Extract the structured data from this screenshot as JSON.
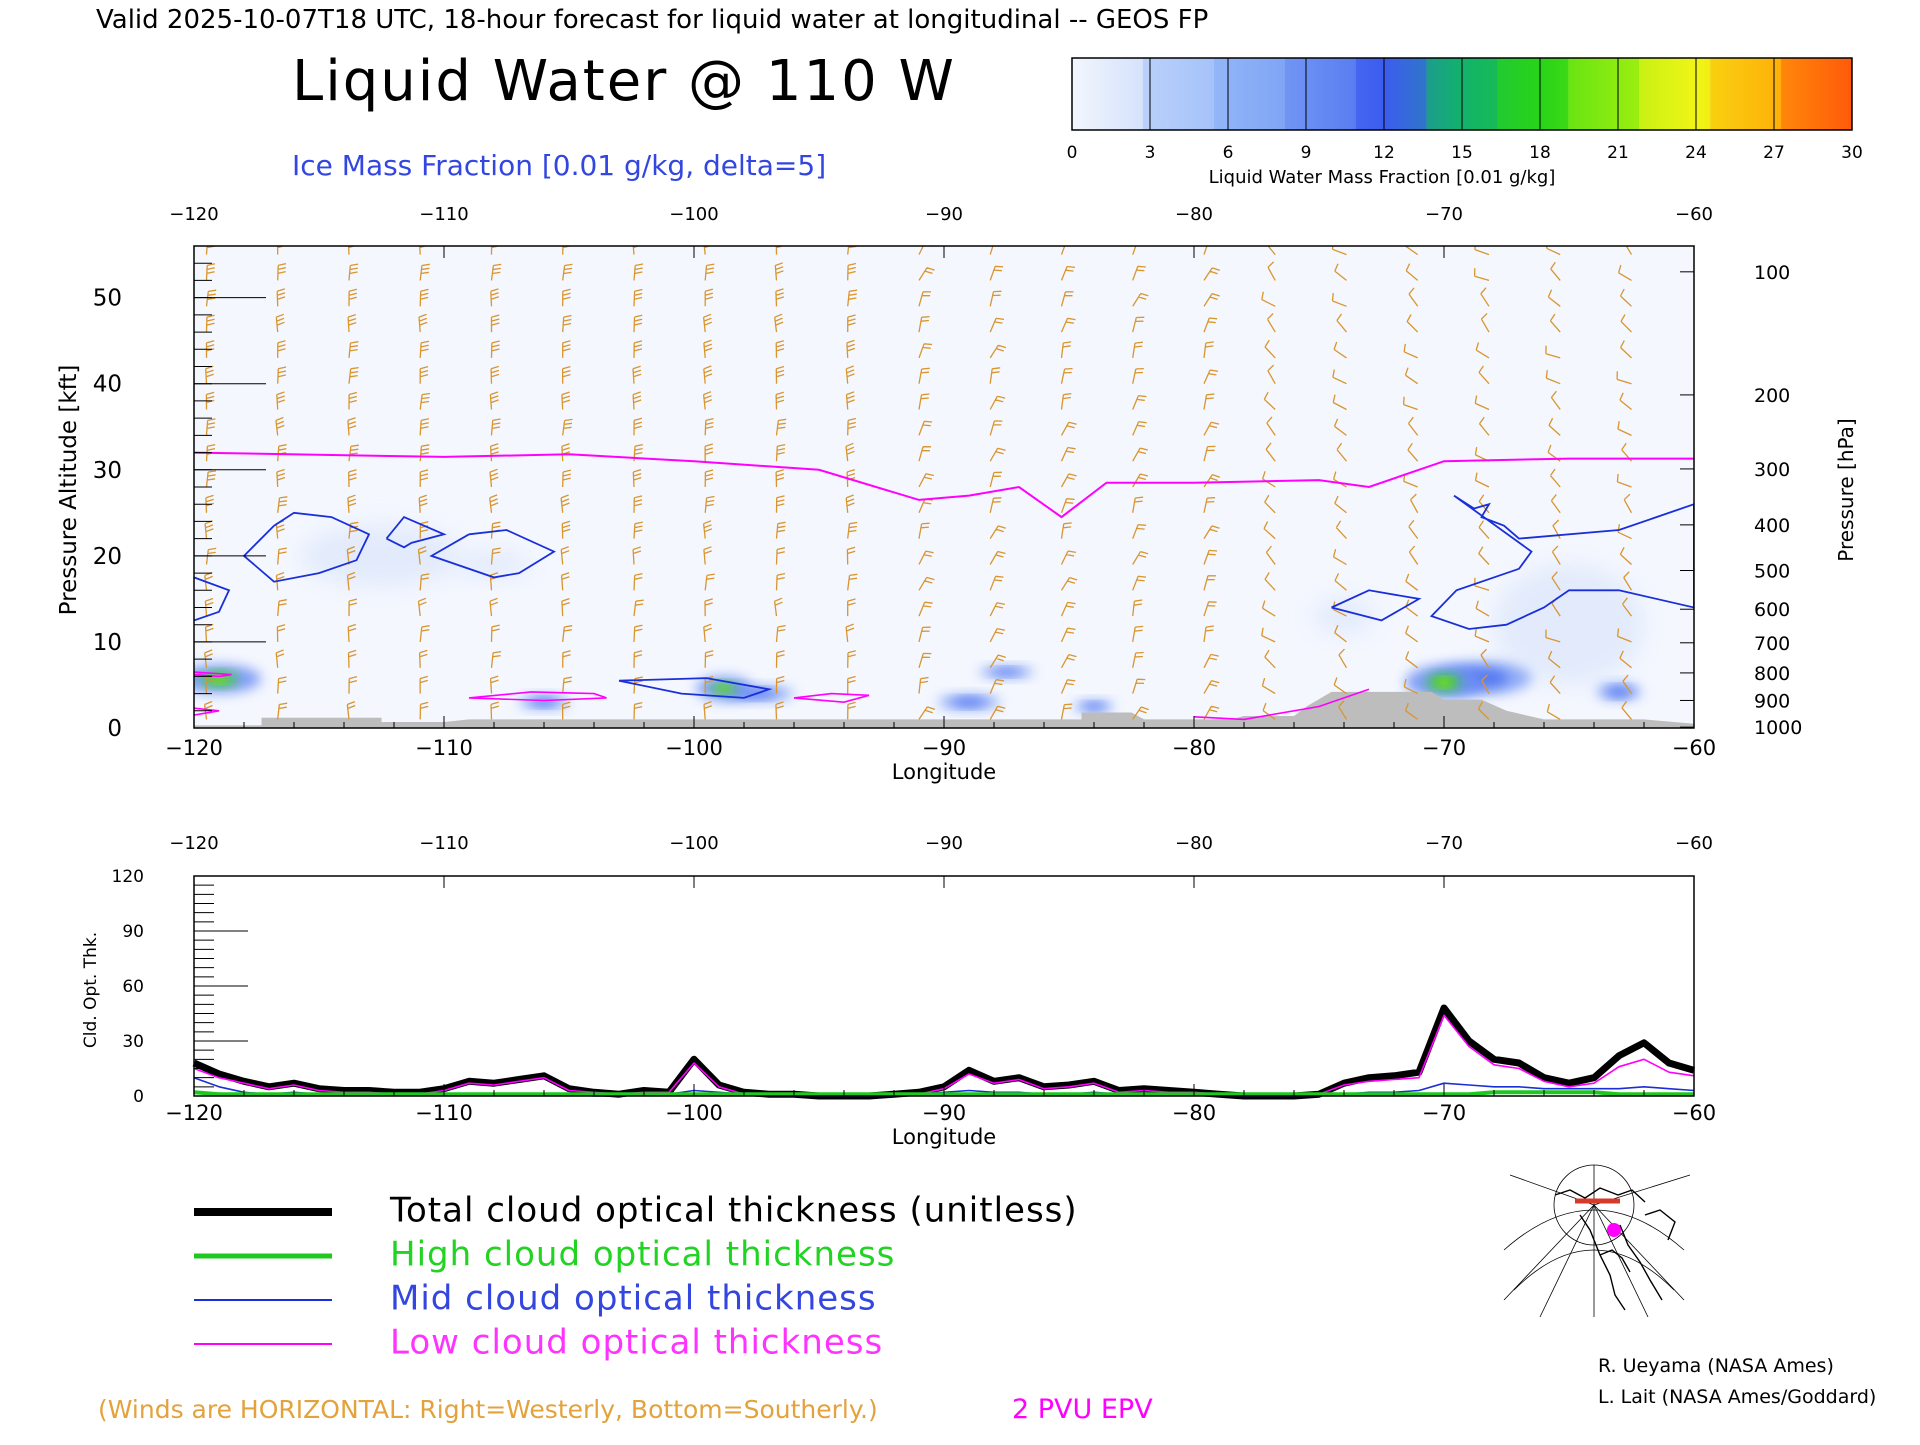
{
  "header": {
    "valid_line": "Valid 2025-10-07T18 UTC, 18-hour forecast for liquid water at longitudinal -- GEOS FP",
    "title": "Liquid Water @ 110 W",
    "subtitle": "Ice Mass Fraction [0.01 g/kg, delta=5]"
  },
  "colorbar": {
    "label": "Liquid Water Mass Fraction [0.01 g/kg]",
    "ticks": [
      "0",
      "3",
      "6",
      "9",
      "12",
      "15",
      "18",
      "21",
      "24",
      "27",
      "30"
    ],
    "colors": [
      "#f2f6fd",
      "#b8cffa",
      "#8fb3f7",
      "#6a8ff3",
      "#3c5cf0",
      "#12b26b",
      "#28d418",
      "#8cec10",
      "#f0f516",
      "#ffb30a",
      "#ff5a0a"
    ]
  },
  "colors": {
    "liquid_low": "#e8f0fd",
    "liquid_mid": "#4a6df0",
    "liquid_high": "#28d418",
    "ice_contour": "#1a2fd8",
    "epv": "#ff00ff",
    "wind_barb": "#d9952e",
    "terrain": "#bdbdbd",
    "total": "#000000",
    "high": "#1fc81f",
    "mid": "#1a2fd8",
    "low": "#ff00ff"
  },
  "chart_data": [
    {
      "type": "heatmap",
      "title": "Liquid Water @ 110 W",
      "xlabel": "Longitude",
      "ylabel": "Pressure Altitude [kft]",
      "y2label": "Pressure [hPa]",
      "xlim": [
        -120,
        -60
      ],
      "ylim": [
        0,
        56
      ],
      "x_ticks": [
        -120,
        -110,
        -100,
        -90,
        -80,
        -70,
        -60
      ],
      "x_tick_labels": [
        "−120",
        "−110",
        "−100",
        "−90",
        "−80",
        "−70",
        "−60"
      ],
      "y_ticks": [
        0,
        10,
        20,
        30,
        40,
        50
      ],
      "pressure_ticks": [
        {
          "label": "100",
          "kft": 53.0
        },
        {
          "label": "200",
          "kft": 38.7
        },
        {
          "label": "300",
          "kft": 30.1
        },
        {
          "label": "400",
          "kft": 23.6
        },
        {
          "label": "500",
          "kft": 18.3
        },
        {
          "label": "600",
          "kft": 13.8
        },
        {
          "label": "700",
          "kft": 9.9
        },
        {
          "label": "800",
          "kft": 6.4
        },
        {
          "label": "900",
          "kft": 3.2
        },
        {
          "label": "1000",
          "kft": 0.1
        }
      ],
      "liquid_blobs": [
        {
          "lon": -119.0,
          "kft": 5.7,
          "rx": 2.4,
          "ry": 1.2,
          "level": "high"
        },
        {
          "lon": -98.8,
          "kft": 4.6,
          "rx": 1.6,
          "ry": 1.0,
          "level": "high"
        },
        {
          "lon": -97.5,
          "kft": 4.0,
          "rx": 3.0,
          "ry": 0.9,
          "level": "mid"
        },
        {
          "lon": -70.0,
          "kft": 5.3,
          "rx": 2.2,
          "ry": 1.4,
          "level": "high"
        },
        {
          "lon": -68.5,
          "kft": 5.8,
          "rx": 4.0,
          "ry": 2.0,
          "level": "mid"
        },
        {
          "lon": -63.0,
          "kft": 4.2,
          "rx": 1.8,
          "ry": 1.0,
          "level": "mid"
        },
        {
          "lon": -87.5,
          "kft": 6.5,
          "rx": 2.2,
          "ry": 0.7,
          "level": "mid"
        },
        {
          "lon": -89.0,
          "kft": 3.0,
          "rx": 2.5,
          "ry": 0.9,
          "level": "mid"
        },
        {
          "lon": -84.0,
          "kft": 2.5,
          "rx": 1.6,
          "ry": 0.7,
          "level": "mid"
        },
        {
          "lon": -106.0,
          "kft": 3.0,
          "rx": 2.0,
          "ry": 0.8,
          "level": "mid"
        },
        {
          "lon": -65.0,
          "kft": 12.0,
          "rx": 6.0,
          "ry": 7.0,
          "level": "low"
        },
        {
          "lon": -74.0,
          "kft": 13.0,
          "rx": 2.5,
          "ry": 2.0,
          "level": "low"
        },
        {
          "lon": -112.5,
          "kft": 20.0,
          "rx": 6.5,
          "ry": 3.5,
          "level": "low"
        },
        {
          "lon": -108.0,
          "kft": 19.0,
          "rx": 3.0,
          "ry": 1.5,
          "level": "low"
        }
      ],
      "ice_contours": [
        [
          [
            -120,
            17.5
          ],
          [
            -118.6,
            16.0
          ],
          [
            -119.0,
            13.5
          ],
          [
            -120,
            12.5
          ]
        ],
        [
          [
            -116.8,
            23.5
          ],
          [
            -116.0,
            25.0
          ],
          [
            -114.5,
            24.5
          ],
          [
            -113.0,
            22.5
          ],
          [
            -113.5,
            19.5
          ],
          [
            -115.0,
            18.0
          ],
          [
            -116.8,
            17.0
          ],
          [
            -118.0,
            20.0
          ],
          [
            -116.8,
            23.5
          ]
        ],
        [
          [
            -112.3,
            22.0
          ],
          [
            -111.6,
            24.5
          ],
          [
            -110.0,
            22.5
          ],
          [
            -111.3,
            21.5
          ],
          [
            -111.6,
            21.0
          ],
          [
            -112.3,
            22.0
          ]
        ],
        [
          [
            -109.0,
            22.5
          ],
          [
            -107.5,
            23.0
          ],
          [
            -105.6,
            20.5
          ],
          [
            -107.0,
            18.0
          ],
          [
            -108.0,
            17.5
          ],
          [
            -110.5,
            20.0
          ],
          [
            -109.0,
            22.5
          ]
        ],
        [
          [
            -103.0,
            5.5
          ],
          [
            -99.5,
            5.8
          ],
          [
            -97.0,
            4.5
          ],
          [
            -98.0,
            3.5
          ],
          [
            -100.5,
            4.0
          ],
          [
            -103.0,
            5.5
          ]
        ],
        [
          [
            -74.5,
            14.0
          ],
          [
            -73.0,
            16.0
          ],
          [
            -71.0,
            15.0
          ],
          [
            -72.5,
            12.5
          ],
          [
            -74.5,
            14.0
          ]
        ],
        [
          [
            -69.6,
            27.0
          ],
          [
            -68.8,
            25.5
          ],
          [
            -68.2,
            26.0
          ],
          [
            -68.5,
            24.5
          ],
          [
            -67.6,
            23.5
          ],
          [
            -67.0,
            22.0
          ],
          [
            -63.0,
            23.0
          ],
          [
            -60.0,
            26.0
          ],
          [
            -60.0,
            14.0
          ],
          [
            -63.0,
            16.0
          ],
          [
            -65.0,
            16.0
          ],
          [
            -66.0,
            14.0
          ],
          [
            -67.5,
            12.0
          ],
          [
            -69.0,
            11.5
          ],
          [
            -70.5,
            13.0
          ],
          [
            -69.5,
            16.0
          ],
          [
            -67.0,
            18.5
          ],
          [
            -66.5,
            20.5
          ],
          [
            -69.6,
            27.0
          ]
        ]
      ],
      "epv_2pvu": [
        [
          -120,
          32.0
        ],
        [
          -110,
          31.5
        ],
        [
          -105,
          31.8
        ],
        [
          -100,
          31.0
        ],
        [
          -95,
          30.0
        ],
        [
          -91,
          26.5
        ],
        [
          -89,
          27.0
        ],
        [
          -87,
          28.0
        ],
        [
          -85.3,
          24.5
        ],
        [
          -83.5,
          28.5
        ],
        [
          -80,
          28.5
        ],
        [
          -75,
          28.8
        ],
        [
          -73,
          28.0
        ],
        [
          -70,
          31.0
        ],
        [
          -65,
          31.3
        ],
        [
          -60,
          31.3
        ]
      ],
      "low_epv_contours": [
        [
          [
            -120,
            6.5
          ],
          [
            -118.5,
            6.2
          ],
          [
            -119.0,
            6.0
          ],
          [
            -120,
            6.2
          ]
        ],
        [
          [
            -120,
            2.3
          ],
          [
            -119.0,
            2.0
          ],
          [
            -120,
            1.5
          ]
        ],
        [
          [
            -109.0,
            3.5
          ],
          [
            -106.5,
            4.2
          ],
          [
            -104.0,
            4.0
          ],
          [
            -103.5,
            3.5
          ],
          [
            -106.0,
            3.2
          ],
          [
            -109.0,
            3.5
          ]
        ],
        [
          [
            -96.0,
            3.5
          ],
          [
            -94.5,
            4.0
          ],
          [
            -93.0,
            3.8
          ],
          [
            -94.0,
            3.0
          ],
          [
            -96.0,
            3.5
          ]
        ],
        [
          [
            -80.0,
            1.3
          ],
          [
            -78.0,
            1.0
          ],
          [
            -75.0,
            2.5
          ],
          [
            -73.0,
            4.5
          ]
        ]
      ],
      "terrain": [
        [
          -120,
          0.3
        ],
        [
          -117.3,
          0.3
        ],
        [
          -117.3,
          1.2
        ],
        [
          -112.5,
          1.2
        ],
        [
          -112.5,
          0.7
        ],
        [
          -110.0,
          0.7
        ],
        [
          -109.0,
          1.0
        ],
        [
          -84.5,
          1.0
        ],
        [
          -84.5,
          1.8
        ],
        [
          -82.5,
          1.8
        ],
        [
          -82.0,
          1.0
        ],
        [
          -78.5,
          1.0
        ],
        [
          -78.0,
          1.4
        ],
        [
          -76.0,
          1.4
        ],
        [
          -75.5,
          2.5
        ],
        [
          -74.5,
          4.2
        ],
        [
          -70.5,
          4.2
        ],
        [
          -70.0,
          3.3
        ],
        [
          -68.5,
          3.3
        ],
        [
          -67.5,
          2.0
        ],
        [
          -66.0,
          1.0
        ],
        [
          -62.0,
          1.0
        ],
        [
          -60,
          0.5
        ]
      ]
    },
    {
      "type": "line",
      "xlabel": "Longitude",
      "ylabel": "Cld. Opt. Thk.",
      "xlim": [
        -120,
        -60
      ],
      "ylim": [
        0,
        120
      ],
      "x_ticks": [
        -120,
        -110,
        -100,
        -90,
        -80,
        -70,
        -60
      ],
      "x_tick_labels": [
        "−120",
        "−110",
        "−100",
        "−90",
        "−80",
        "−70",
        "−60"
      ],
      "y_ticks": [
        0,
        30,
        60,
        90,
        120
      ],
      "x": [
        -120,
        -119,
        -118,
        -117,
        -116,
        -115,
        -114,
        -113,
        -112,
        -111,
        -110,
        -109,
        -108,
        -107,
        -106,
        -105,
        -104,
        -103,
        -102,
        -101,
        -100,
        -99,
        -98,
        -97,
        -96,
        -95,
        -94,
        -93,
        -92,
        -91,
        -90,
        -89,
        -88,
        -87,
        -86,
        -85,
        -84,
        -83,
        -82,
        -81,
        -80,
        -79,
        -78,
        -77,
        -76,
        -75,
        -74,
        -73,
        -72,
        -71,
        -70,
        -69,
        -68,
        -67,
        -66,
        -65,
        -64,
        -63,
        -62,
        -61,
        -60
      ],
      "series": [
        {
          "name": "Total cloud optical thickness (unitless)",
          "color": "#000000",
          "values": [
            18,
            12,
            8,
            5,
            7,
            4,
            3,
            3,
            2,
            2,
            4,
            8,
            7,
            9,
            11,
            4,
            2,
            1,
            3,
            2,
            20,
            6,
            2,
            1,
            1,
            0,
            0,
            0,
            1,
            2,
            5,
            14,
            8,
            10,
            5,
            6,
            8,
            3,
            4,
            3,
            2,
            1,
            0,
            0,
            0,
            1,
            7,
            10,
            11,
            13,
            48,
            30,
            20,
            18,
            10,
            7,
            10,
            22,
            29,
            18,
            14
          ]
        },
        {
          "name": "High cloud optical thickness",
          "color": "#1fc81f",
          "values": [
            2,
            1,
            1,
            1,
            1,
            1,
            1,
            1,
            1,
            1,
            1,
            1,
            1,
            1,
            1,
            1,
            1,
            1,
            1,
            1,
            1,
            1,
            1,
            1,
            1,
            1,
            1,
            1,
            1,
            1,
            1,
            1,
            1,
            1,
            1,
            1,
            1,
            1,
            1,
            1,
            1,
            1,
            1,
            1,
            1,
            1,
            1,
            1,
            1,
            1,
            1,
            1,
            2,
            2,
            2,
            2,
            2,
            1,
            1,
            1,
            1
          ]
        },
        {
          "name": "Mid cloud optical thickness",
          "color": "#1a2fd8",
          "values": [
            10,
            5,
            2,
            1,
            2,
            1,
            1,
            1,
            1,
            1,
            1,
            1,
            1,
            1,
            1,
            1,
            0,
            0,
            1,
            1,
            3,
            2,
            1,
            0,
            0,
            0,
            0,
            0,
            0,
            1,
            2,
            3,
            2,
            2,
            1,
            1,
            2,
            1,
            1,
            1,
            1,
            0,
            0,
            0,
            0,
            0,
            1,
            2,
            2,
            3,
            7,
            6,
            5,
            5,
            4,
            4,
            4,
            4,
            5,
            4,
            3
          ]
        },
        {
          "name": "Low cloud optical thickness",
          "color": "#ff00ff",
          "values": [
            15,
            10,
            7,
            4,
            6,
            3,
            2,
            2,
            1,
            1,
            3,
            7,
            6,
            8,
            10,
            3,
            2,
            1,
            2,
            2,
            18,
            5,
            1,
            1,
            1,
            0,
            0,
            0,
            1,
            1,
            4,
            12,
            7,
            9,
            4,
            5,
            7,
            2,
            3,
            2,
            2,
            1,
            0,
            0,
            0,
            1,
            6,
            8,
            9,
            10,
            44,
            27,
            17,
            15,
            8,
            5,
            7,
            16,
            20,
            13,
            11
          ]
        }
      ]
    }
  ],
  "legend": {
    "total": "Total cloud optical thickness (unitless)",
    "high": "High cloud optical thickness",
    "mid": "Mid cloud optical thickness",
    "low": "Low cloud optical thickness"
  },
  "footer": {
    "winds_note": "(Winds are HORIZONTAL: Right=Westerly, Bottom=Southerly.)",
    "epv_label": "2 PVU EPV",
    "credit1": "R. Ueyama (NASA Ames)",
    "credit2": "L. Lait (NASA Ames/Goddard)"
  }
}
